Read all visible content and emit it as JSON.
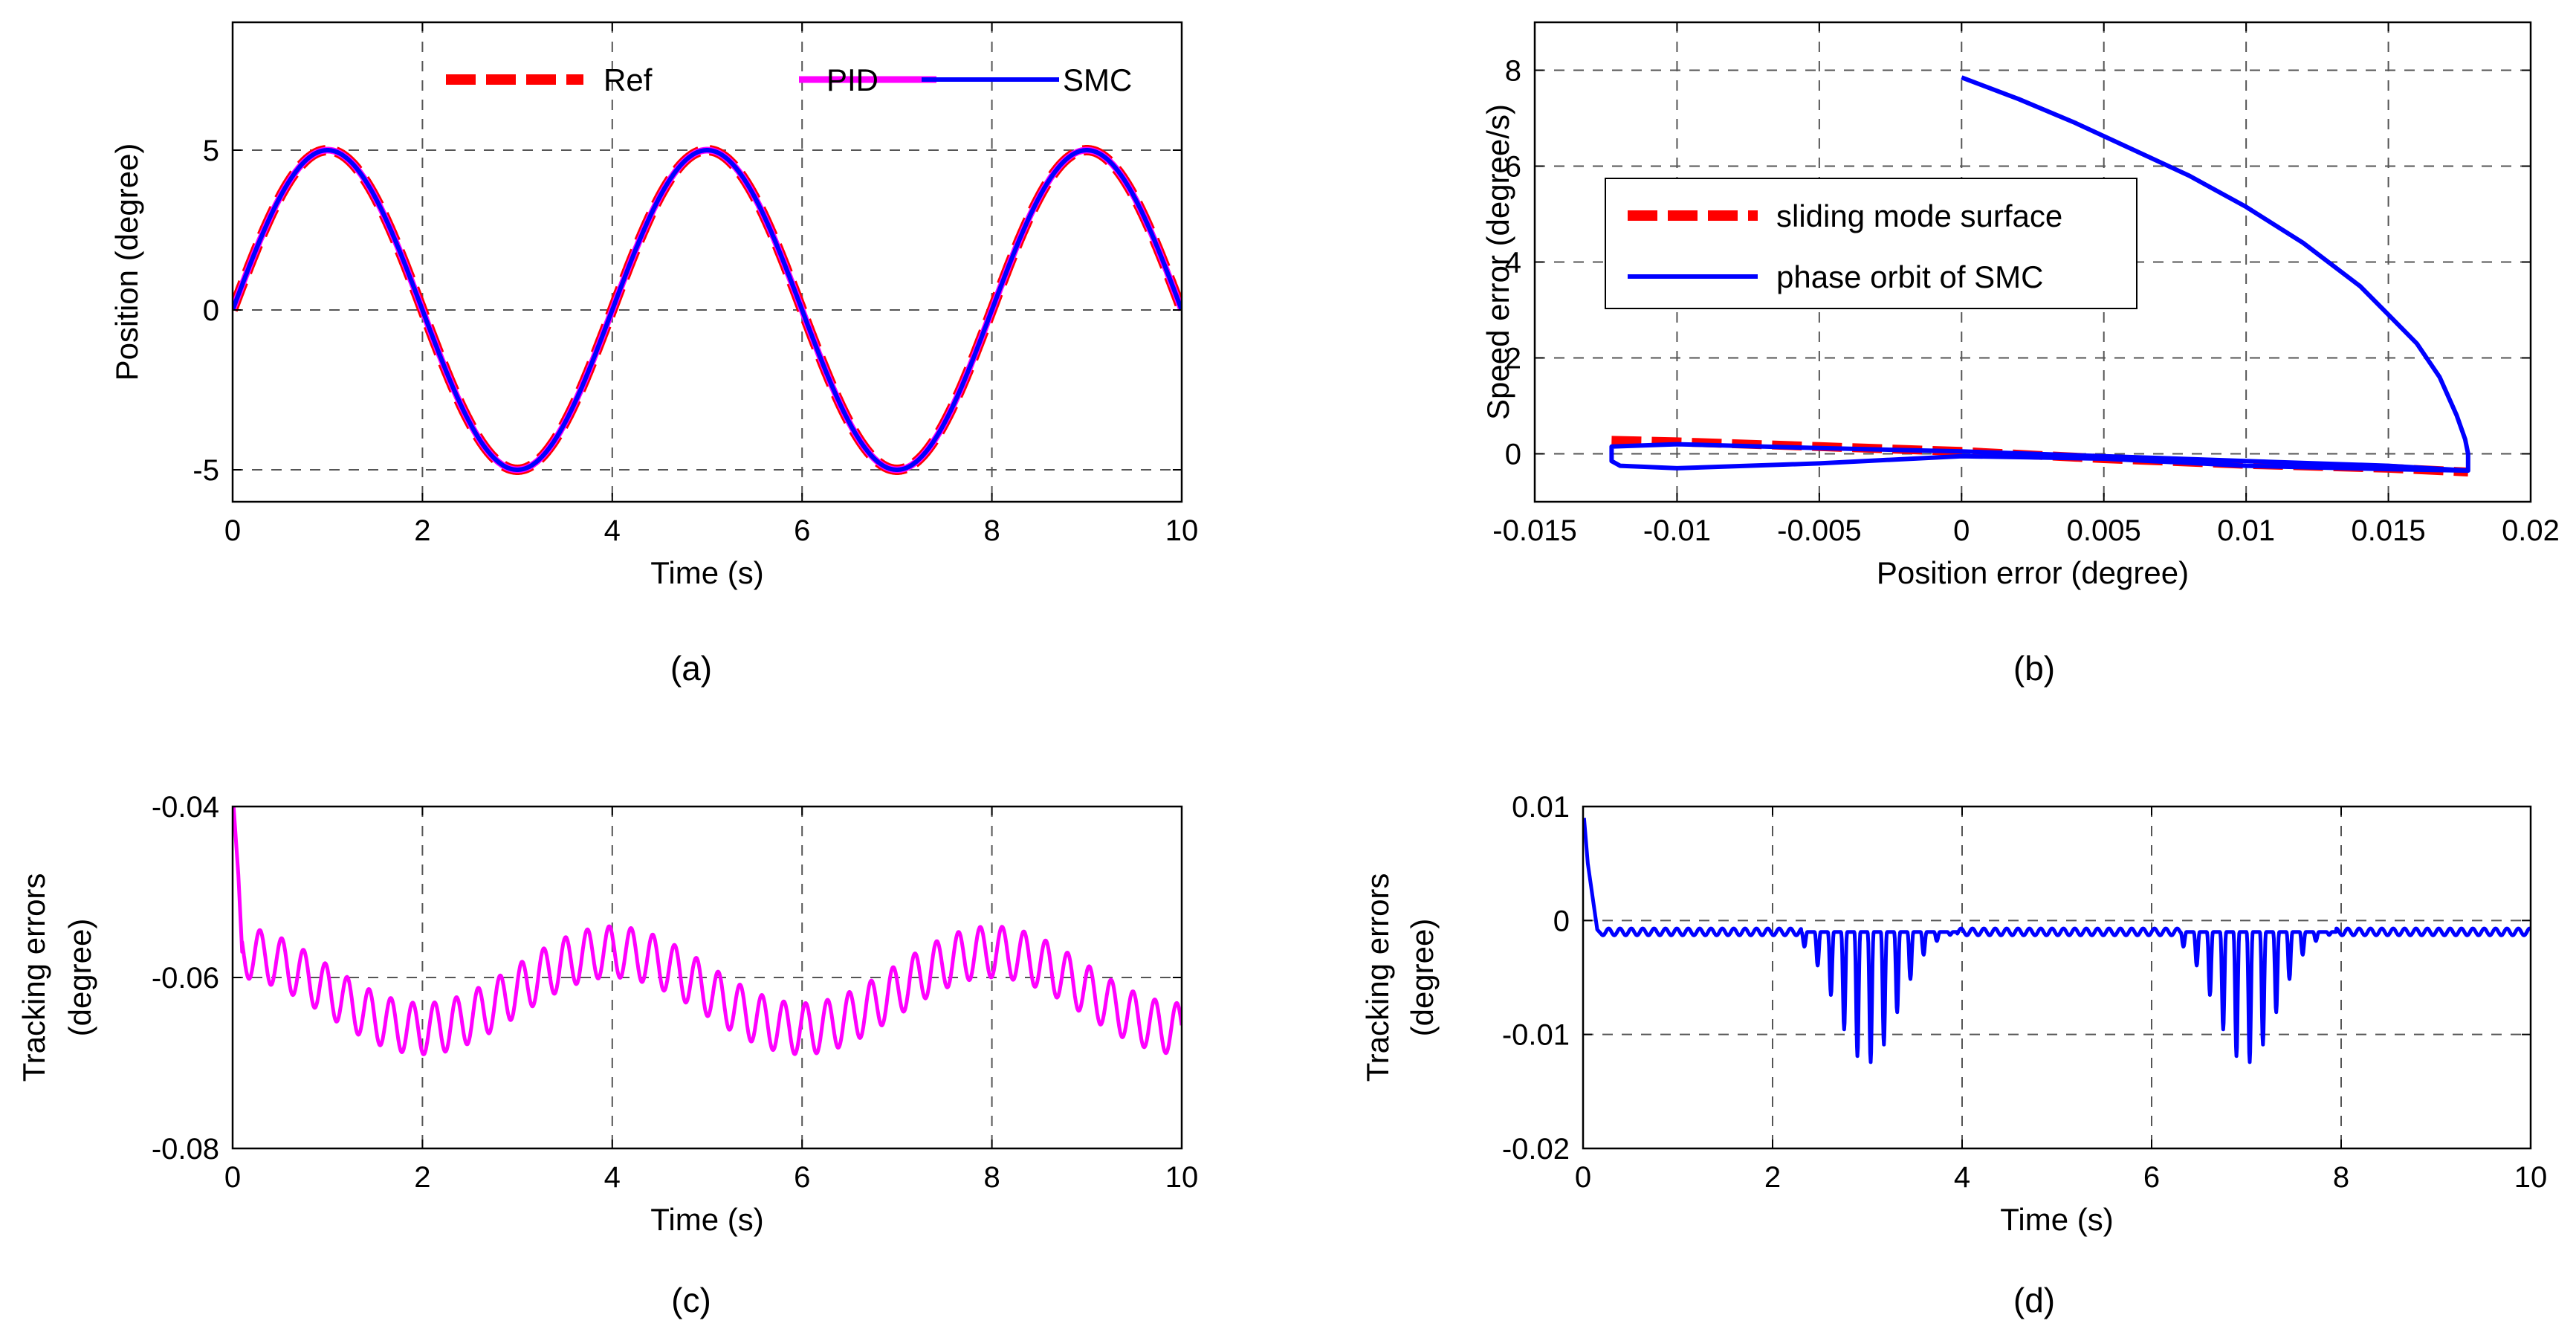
{
  "chart_data": [
    {
      "id": "a",
      "type": "line",
      "caption": "(a)",
      "xlabel": "Time (s)",
      "ylabel": "Position (degree)",
      "xlim": [
        0,
        10
      ],
      "ylim": [
        -6,
        9
      ],
      "xticks": [
        0,
        2,
        4,
        6,
        8,
        10
      ],
      "xtick_labels": [
        "0",
        "2",
        "4",
        "6",
        "8",
        "10"
      ],
      "yticks": [
        -5,
        0,
        5
      ],
      "ytick_labels": [
        "-5",
        "0",
        "5"
      ],
      "grid": true,
      "legend_placement": "top-right, horizontal",
      "series": [
        {
          "name": "Ref",
          "color": "#ff0000",
          "style": "dashed",
          "formula": "5*sin(pi*t/2)"
        },
        {
          "name": "PID",
          "color": "#ff00ff",
          "style": "solid",
          "formula": "5*sin(pi*t/2)"
        },
        {
          "name": "SMC",
          "color": "#0000ff",
          "style": "solid",
          "formula": "5*sin(pi*t/2)"
        }
      ]
    },
    {
      "id": "b",
      "type": "line",
      "caption": "(b)",
      "xlabel": "Position error (degree)",
      "ylabel": "Speed error (degree/s)",
      "xlim": [
        -0.015,
        0.02
      ],
      "ylim": [
        -1,
        9
      ],
      "xticks": [
        -0.015,
        -0.01,
        -0.005,
        0,
        0.005,
        0.01,
        0.015,
        0.02
      ],
      "xtick_labels": [
        "-0.015",
        "-0.01",
        "-0.005",
        "0",
        "0.005",
        "0.01",
        "0.015",
        "0.02"
      ],
      "yticks": [
        0,
        2,
        4,
        6,
        8
      ],
      "ytick_labels": [
        "0",
        "2",
        "4",
        "6",
        "8"
      ],
      "grid": true,
      "legend_placement": "upper-left",
      "series": [
        {
          "name": "sliding mode surface",
          "color": "#ff0000",
          "style": "dashed",
          "x": [
            -0.0123,
            -0.01,
            -0.005,
            0,
            0.005,
            0.01,
            0.015,
            0.0178
          ],
          "y": [
            0.28,
            0.25,
            0.15,
            0.05,
            -0.1,
            -0.22,
            -0.3,
            -0.38
          ]
        },
        {
          "name": "phase orbit of SMC",
          "color": "#0000ff",
          "style": "solid",
          "x": [
            0,
            0.002,
            0.004,
            0.006,
            0.008,
            0.01,
            0.012,
            0.014,
            0.015,
            0.016,
            0.0168,
            0.0174,
            0.0177,
            0.0178,
            0.0178,
            0.015,
            0.01,
            0.005,
            0,
            -0.005,
            -0.01,
            -0.0123,
            -0.0123,
            -0.012,
            -0.01,
            -0.005,
            0,
            0.005,
            0.01,
            0.015,
            0.0178
          ],
          "y": [
            7.85,
            7.4,
            6.9,
            6.35,
            5.8,
            5.15,
            4.4,
            3.5,
            2.9,
            2.3,
            1.6,
            0.8,
            0.3,
            0.0,
            -0.35,
            -0.25,
            -0.15,
            -0.05,
            0.05,
            0.12,
            0.2,
            0.15,
            -0.15,
            -0.25,
            -0.3,
            -0.2,
            -0.05,
            -0.1,
            -0.25,
            -0.32,
            -0.35
          ]
        }
      ]
    },
    {
      "id": "c",
      "type": "line",
      "caption": "(c)",
      "xlabel": "Time (s)",
      "ylabel": "Tracking errors",
      "ylabel2": "(degree)",
      "xlim": [
        0,
        10
      ],
      "ylim": [
        -0.08,
        -0.04
      ],
      "xticks": [
        0,
        2,
        4,
        6,
        8,
        10
      ],
      "xtick_labels": [
        "0",
        "2",
        "4",
        "6",
        "8",
        "10"
      ],
      "yticks": [
        -0.08,
        -0.06,
        -0.04
      ],
      "ytick_labels": [
        "-0.08",
        "-0.06",
        "-0.04"
      ],
      "grid": true,
      "series": [
        {
          "name": "PID",
          "color": "#ff00ff",
          "style": "solid",
          "formula": "-0.0615 + 0.0045*cos(pi*t/2) + 0.003*sin(2*pi*t/0.23)",
          "initial_spike": -0.04
        }
      ]
    },
    {
      "id": "d",
      "type": "line",
      "caption": "(d)",
      "xlabel": "Time (s)",
      "ylabel": "Tracking errors",
      "ylabel2": "(degree)",
      "xlim": [
        0,
        10
      ],
      "ylim": [
        -0.02,
        0.01
      ],
      "xticks": [
        0,
        2,
        4,
        6,
        8,
        10
      ],
      "xtick_labels": [
        "0",
        "2",
        "4",
        "6",
        "8",
        "10"
      ],
      "yticks": [
        -0.02,
        -0.01,
        0,
        0.01
      ],
      "ytick_labels": [
        "-0.02",
        "-0.01",
        "0",
        "0.01"
      ],
      "grid": true,
      "series": [
        {
          "name": "SMC",
          "color": "#0000ff",
          "style": "solid",
          "baseline": -0.001,
          "initial_spike": 0.009,
          "dips": [
            {
              "start": 2.3,
              "end": 3.95,
              "center": 3.0,
              "depth": -0.0125
            },
            {
              "start": 6.3,
              "end": 7.95,
              "center": 7.0,
              "depth": -0.0125
            }
          ]
        }
      ]
    }
  ]
}
